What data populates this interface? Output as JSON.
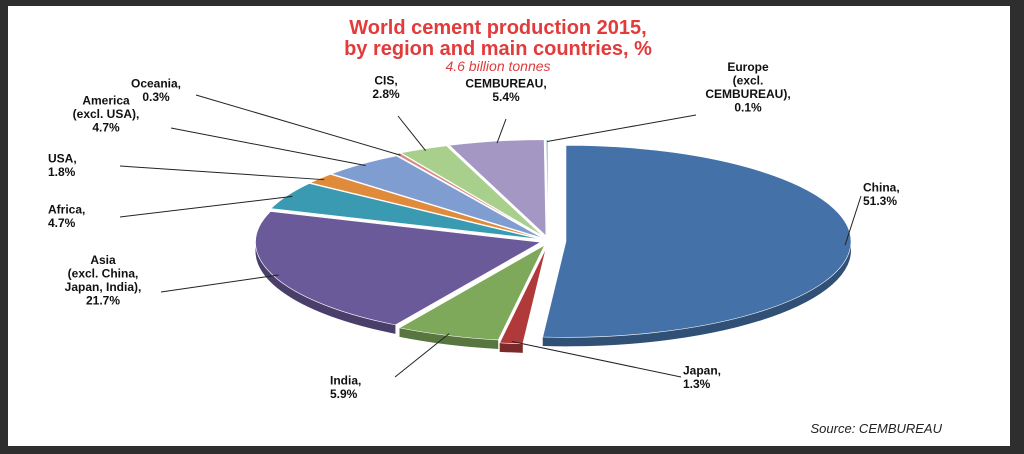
{
  "chart_data": {
    "type": "pie",
    "title": "World cement production 2015, by region and main countries, %",
    "subtitle": "4.6 billion tonnes",
    "source": "Source: CEMBUREAU",
    "slices": [
      {
        "name": "China",
        "value": 51.3,
        "label": [
          "China,",
          "51.3%"
        ],
        "color": "#4472a8"
      },
      {
        "name": "Japan",
        "value": 1.3,
        "label": [
          "Japan,",
          "1.3%"
        ],
        "color": "#b03a3a"
      },
      {
        "name": "India",
        "value": 5.9,
        "label": [
          "India,",
          "5.9%"
        ],
        "color": "#7ea85a"
      },
      {
        "name": "Asia (excl. China, Japan, India)",
        "value": 21.7,
        "label": [
          "Asia",
          "(excl. China,",
          "Japan, India),",
          "21.7%"
        ],
        "color": "#6a5a99"
      },
      {
        "name": "Africa",
        "value": 4.7,
        "label": [
          "Africa,",
          "4.7%"
        ],
        "color": "#3a9ab2"
      },
      {
        "name": "USA",
        "value": 1.8,
        "label": [
          "USA,",
          "1.8%"
        ],
        "color": "#e08a3c"
      },
      {
        "name": "America (excl. USA)",
        "value": 4.7,
        "label": [
          "America",
          "(excl. USA),",
          "4.7%"
        ],
        "color": "#7f9dd1"
      },
      {
        "name": "Oceania",
        "value": 0.3,
        "label": [
          "Oceania,",
          "0.3%"
        ],
        "color": "#d98a8a"
      },
      {
        "name": "CIS",
        "value": 2.8,
        "label": [
          "CIS,",
          "2.8%"
        ],
        "color": "#a9cf8c"
      },
      {
        "name": "CEMBUREAU",
        "value": 5.4,
        "label": [
          "CEMBUREAU,",
          "5.4%"
        ],
        "color": "#a597c4"
      },
      {
        "name": "Europe (excl. CEMBUREAU)",
        "value": 0.1,
        "label": [
          "Europe",
          "(excl.",
          "CEMBUREAU),",
          "0.1%"
        ],
        "color": "#7fb8d6"
      }
    ]
  }
}
